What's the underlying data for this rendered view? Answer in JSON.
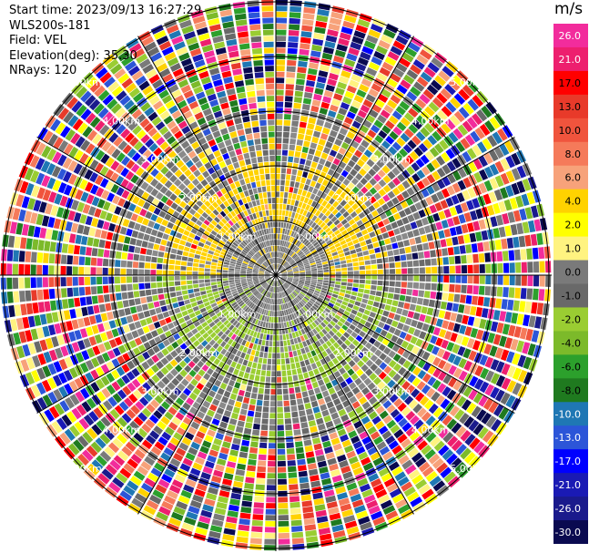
{
  "header": {
    "start_time": "Start time: 2023/09/13 16:27:29",
    "instrument": "WLS200s-181",
    "field": "Field: VEL",
    "elevation": "Elevation(deg): 35.30",
    "nrays": "NRays: 120"
  },
  "colorbar": {
    "unit": "m/s",
    "ticks": [
      "26.0",
      "21.0",
      "17.0",
      "13.0",
      "10.0",
      "8.0",
      "6.0",
      "4.0",
      "2.0",
      "1.0",
      "0.0",
      "-1.0",
      "-2.0",
      "-4.0",
      "-6.0",
      "-8.0",
      "-10.0",
      "-13.0",
      "-17.0",
      "-21.0",
      "-26.0",
      "-30.0"
    ],
    "colors": [
      "#f22c9c",
      "#ed1f6e",
      "#ff0000",
      "#e83a2a",
      "#f0543d",
      "#f57a5a",
      "#f7a27a",
      "#ffd200",
      "#ffff00",
      "#fff380",
      "#7a7a7a",
      "#696969",
      "#9acd32",
      "#7cba2a",
      "#2ca02c",
      "#1f7a1f",
      "#1f77b4",
      "#2c55d8",
      "#0000ff",
      "#1a1ab4",
      "#1a1a8c",
      "#0a0a50"
    ]
  },
  "range_rings": {
    "labels": [
      "1.00km",
      "2.00km",
      "3.00km",
      "4.00km",
      "5.00km",
      "6.00km"
    ]
  }
}
